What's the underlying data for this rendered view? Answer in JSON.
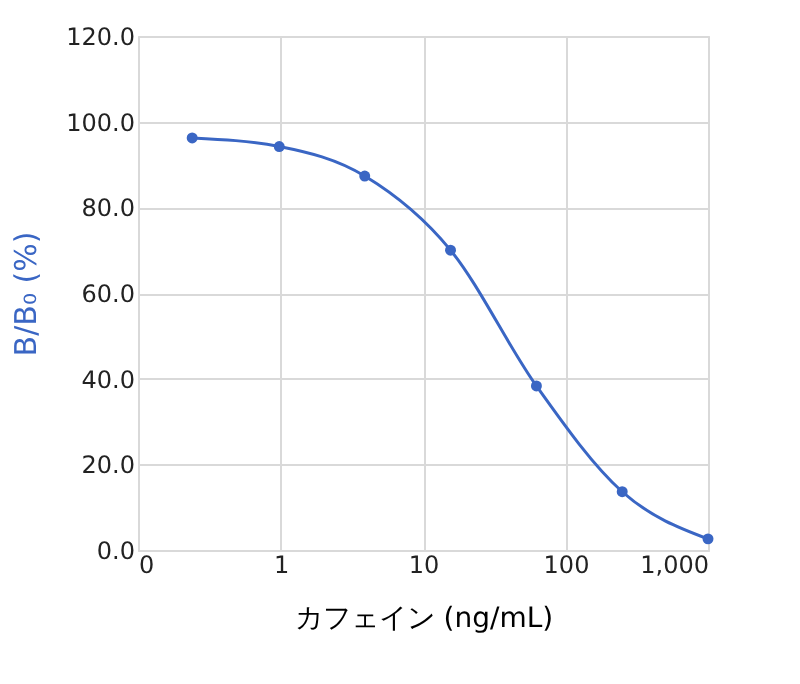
{
  "chart_data": {
    "type": "line",
    "xlabel": "カフェイン (ng/mL)",
    "ylabel": "B/B₀ (%)",
    "x": [
      0.24,
      0.98,
      3.9,
      15.6,
      62.5,
      250,
      1000
    ],
    "series": [
      {
        "color": "#3a66c4",
        "values": [
          96.2,
          94.2,
          87.3,
          70.0,
          38.3,
          13.6,
          2.6
        ]
      }
    ],
    "log": "x",
    "xlim": [
      0.1,
      1000
    ],
    "xticks": [
      {
        "value": 0.1,
        "label": "0"
      },
      1,
      10,
      100,
      {
        "value": 1000,
        "label": "1,000"
      }
    ],
    "ylim": [
      0,
      120
    ],
    "yticks": [
      {
        "value": 0,
        "label": "0.0"
      },
      {
        "value": 20,
        "label": "20.0"
      },
      {
        "value": 40,
        "label": "40.0"
      },
      {
        "value": 60,
        "label": "60.0"
      },
      {
        "value": 80,
        "label": "80.0"
      },
      {
        "value": 100,
        "label": "100.0"
      },
      {
        "value": 120,
        "label": "120.0"
      }
    ],
    "grid": true,
    "marker": "circle",
    "line_style": "solid"
  }
}
